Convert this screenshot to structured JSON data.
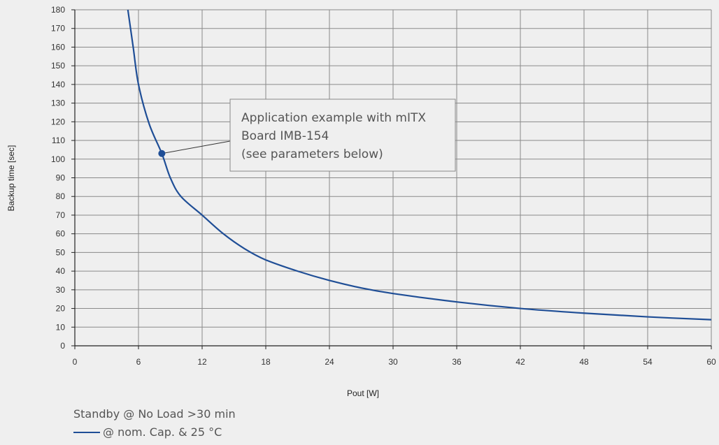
{
  "chart_data": {
    "type": "line",
    "xlabel": "Pout [W]",
    "ylabel": "Backup time [sec]",
    "xlim": [
      0,
      60
    ],
    "ylim": [
      0,
      180
    ],
    "xticks": [
      0,
      6,
      12,
      18,
      24,
      30,
      36,
      42,
      48,
      54,
      60
    ],
    "yticks": [
      0,
      10,
      20,
      30,
      40,
      50,
      60,
      70,
      80,
      90,
      100,
      110,
      120,
      130,
      140,
      150,
      160,
      170,
      180
    ],
    "grid": true,
    "series": [
      {
        "name": "@nom. Cap. & 25 °C",
        "color": "#1f4e96",
        "x": [
          5.0,
          5.5,
          6.0,
          7.0,
          8.2,
          9.0,
          10.0,
          12.0,
          14.0,
          16.0,
          18.0,
          21.0,
          24.0,
          27.0,
          30.0,
          36.0,
          42.0,
          48.0,
          54.0,
          60.0
        ],
        "y": [
          180,
          160,
          140,
          119,
          103,
          90,
          80,
          70,
          60,
          52,
          46,
          40,
          35,
          31,
          28,
          23.5,
          20,
          17.5,
          15.5,
          14
        ]
      }
    ],
    "annotation": {
      "lines": [
        "Application example with mITX",
        "Board IMB-154",
        "(see parameters below)"
      ],
      "point": {
        "x": 8.2,
        "y": 103
      },
      "marker_color": "#1f4e96"
    }
  },
  "footer": {
    "note": "Standby @ No Load >30 min",
    "legend_label": "@ nom. Cap. & 25 °C"
  }
}
